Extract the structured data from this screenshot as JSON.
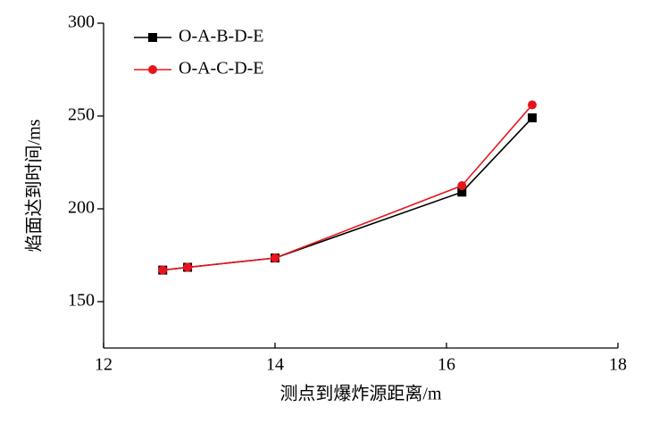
{
  "chart_data": {
    "type": "line",
    "xlabel": "测点到爆炸源距离/m",
    "ylabel": "焰面达到时间/ms",
    "x": [
      12.69,
      12.98,
      14.0,
      16.18,
      17.0
    ],
    "series": [
      {
        "name": "O-A-B-D-E",
        "color": "#000000",
        "marker": "square",
        "values": [
          167,
          168.5,
          173.5,
          209,
          249
        ]
      },
      {
        "name": "O-A-C-D-E",
        "color": "#e8141c",
        "marker": "circle",
        "values": [
          167,
          168.5,
          173.5,
          212.5,
          256
        ]
      }
    ],
    "xlim": [
      12,
      18
    ],
    "xticks": [
      12,
      14,
      16,
      18
    ],
    "ylim": [
      125,
      300
    ],
    "yticks": [
      150,
      200,
      250,
      300
    ],
    "grid": false,
    "legend": "upper left"
  }
}
